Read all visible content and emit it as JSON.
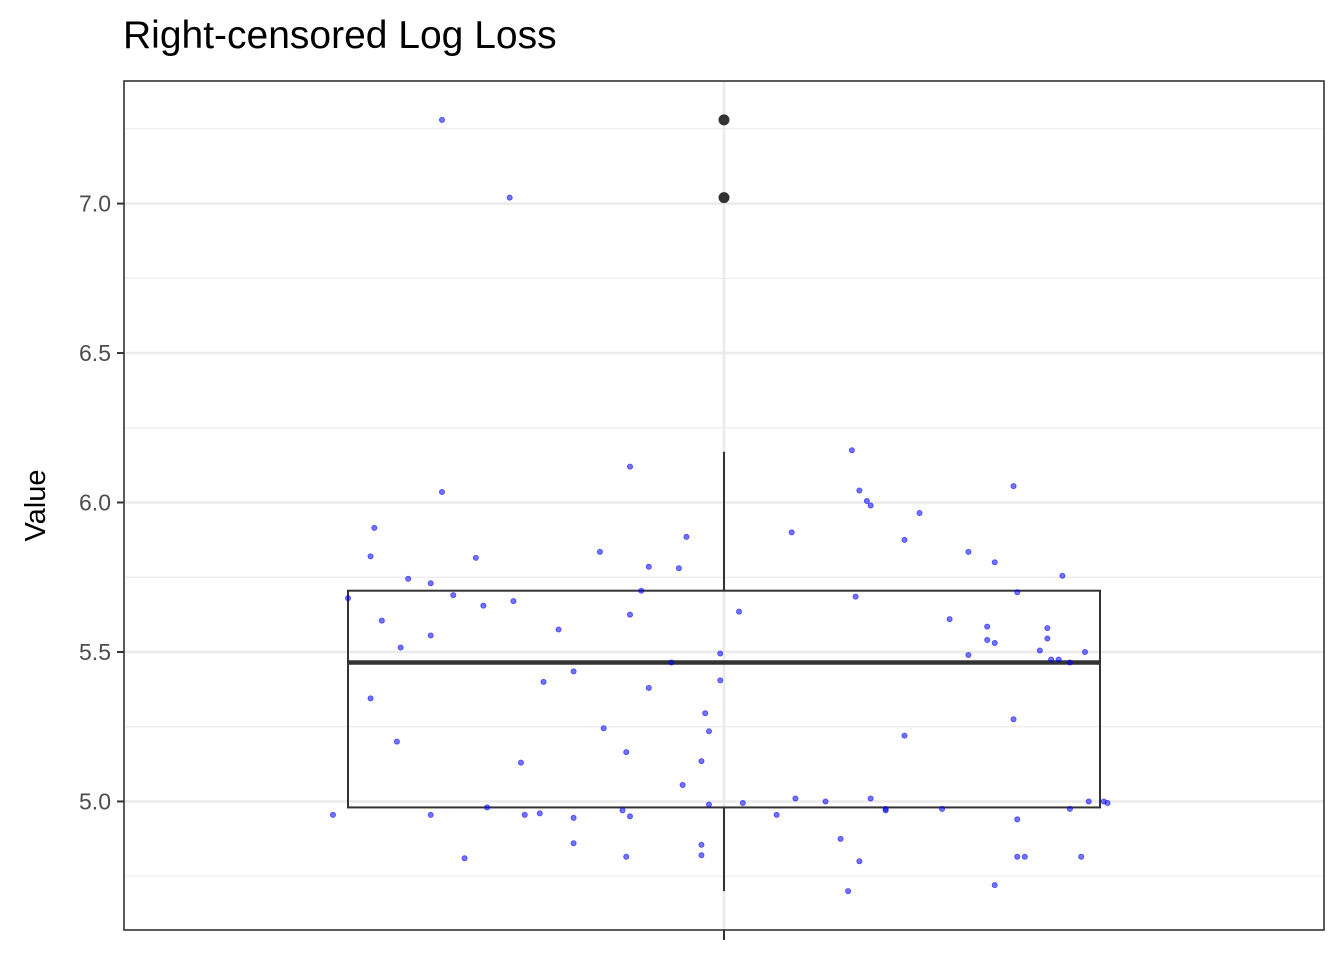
{
  "chart_data": {
    "type": "boxplot",
    "title": "Right-censored Log Loss",
    "xlabel": "",
    "ylabel": "Value",
    "ylim": [
      4.57,
      7.41
    ],
    "y_ticks": [
      "5.0",
      "5.5",
      "6.0",
      "6.5",
      "7.0"
    ],
    "y_tick_values": [
      5.0,
      5.5,
      6.0,
      6.5,
      7.0
    ],
    "grid": true,
    "colors": {
      "points": "#0000ff",
      "box": "#333333",
      "grid": "#ebebeb",
      "panel_border": "#333333"
    },
    "box": {
      "whisker_low": 4.7,
      "q1": 4.98,
      "median": 5.465,
      "q3": 5.705,
      "whisker_high": 6.17,
      "outliers": [
        7.02,
        7.28
      ]
    },
    "points": [
      {
        "x": -0.52,
        "y": 4.955
      },
      {
        "x": -0.5,
        "y": 5.68
      },
      {
        "x": -0.47,
        "y": 5.82
      },
      {
        "x": -0.47,
        "y": 5.345
      },
      {
        "x": -0.465,
        "y": 5.915
      },
      {
        "x": -0.455,
        "y": 5.605
      },
      {
        "x": -0.435,
        "y": 5.2
      },
      {
        "x": -0.43,
        "y": 5.515
      },
      {
        "x": -0.42,
        "y": 5.745
      },
      {
        "x": -0.39,
        "y": 5.555
      },
      {
        "x": -0.39,
        "y": 5.73
      },
      {
        "x": -0.39,
        "y": 4.955
      },
      {
        "x": -0.375,
        "y": 6.035
      },
      {
        "x": -0.375,
        "y": 7.28
      },
      {
        "x": -0.36,
        "y": 5.69
      },
      {
        "x": -0.345,
        "y": 4.81
      },
      {
        "x": -0.33,
        "y": 5.815
      },
      {
        "x": -0.32,
        "y": 5.655
      },
      {
        "x": -0.315,
        "y": 4.98
      },
      {
        "x": -0.285,
        "y": 7.02
      },
      {
        "x": -0.28,
        "y": 5.67
      },
      {
        "x": -0.27,
        "y": 5.13
      },
      {
        "x": -0.265,
        "y": 4.955
      },
      {
        "x": -0.245,
        "y": 4.96
      },
      {
        "x": -0.24,
        "y": 5.4
      },
      {
        "x": -0.22,
        "y": 5.575
      },
      {
        "x": -0.2,
        "y": 5.435
      },
      {
        "x": -0.2,
        "y": 4.945
      },
      {
        "x": -0.2,
        "y": 4.86
      },
      {
        "x": -0.165,
        "y": 5.835
      },
      {
        "x": -0.16,
        "y": 5.245
      },
      {
        "x": -0.135,
        "y": 4.97
      },
      {
        "x": -0.13,
        "y": 5.165
      },
      {
        "x": -0.13,
        "y": 4.815
      },
      {
        "x": -0.125,
        "y": 5.625
      },
      {
        "x": -0.125,
        "y": 6.12
      },
      {
        "x": -0.125,
        "y": 4.95
      },
      {
        "x": -0.11,
        "y": 5.705
      },
      {
        "x": -0.1,
        "y": 5.785
      },
      {
        "x": -0.1,
        "y": 5.38
      },
      {
        "x": -0.07,
        "y": 5.465
      },
      {
        "x": -0.06,
        "y": 5.78
      },
      {
        "x": -0.055,
        "y": 5.055
      },
      {
        "x": -0.05,
        "y": 5.885
      },
      {
        "x": -0.03,
        "y": 5.135
      },
      {
        "x": -0.03,
        "y": 4.855
      },
      {
        "x": -0.03,
        "y": 4.82
      },
      {
        "x": -0.025,
        "y": 5.295
      },
      {
        "x": -0.02,
        "y": 5.235
      },
      {
        "x": -0.02,
        "y": 4.99
      },
      {
        "x": -0.005,
        "y": 5.405
      },
      {
        "x": -0.005,
        "y": 5.495
      },
      {
        "x": 0.02,
        "y": 5.635
      },
      {
        "x": 0.025,
        "y": 4.995
      },
      {
        "x": 0.07,
        "y": 4.955
      },
      {
        "x": 0.09,
        "y": 5.9
      },
      {
        "x": 0.095,
        "y": 5.01
      },
      {
        "x": 0.135,
        "y": 5.0
      },
      {
        "x": 0.155,
        "y": 4.875
      },
      {
        "x": 0.165,
        "y": 4.7
      },
      {
        "x": 0.17,
        "y": 6.175
      },
      {
        "x": 0.175,
        "y": 5.685
      },
      {
        "x": 0.18,
        "y": 6.04
      },
      {
        "x": 0.18,
        "y": 4.8
      },
      {
        "x": 0.19,
        "y": 6.005
      },
      {
        "x": 0.195,
        "y": 5.99
      },
      {
        "x": 0.195,
        "y": 5.01
      },
      {
        "x": 0.215,
        "y": 4.975
      },
      {
        "x": 0.215,
        "y": 4.97
      },
      {
        "x": 0.24,
        "y": 5.22
      },
      {
        "x": 0.24,
        "y": 5.875
      },
      {
        "x": 0.26,
        "y": 5.965
      },
      {
        "x": 0.29,
        "y": 4.975
      },
      {
        "x": 0.3,
        "y": 5.61
      },
      {
        "x": 0.325,
        "y": 5.49
      },
      {
        "x": 0.325,
        "y": 5.835
      },
      {
        "x": 0.35,
        "y": 5.585
      },
      {
        "x": 0.35,
        "y": 5.54
      },
      {
        "x": 0.36,
        "y": 5.53
      },
      {
        "x": 0.36,
        "y": 5.8
      },
      {
        "x": 0.36,
        "y": 4.72
      },
      {
        "x": 0.385,
        "y": 5.275
      },
      {
        "x": 0.385,
        "y": 6.055
      },
      {
        "x": 0.39,
        "y": 4.94
      },
      {
        "x": 0.39,
        "y": 5.7
      },
      {
        "x": 0.39,
        "y": 4.815
      },
      {
        "x": 0.4,
        "y": 4.815
      },
      {
        "x": 0.42,
        "y": 5.505
      },
      {
        "x": 0.43,
        "y": 5.58
      },
      {
        "x": 0.43,
        "y": 5.545
      },
      {
        "x": 0.435,
        "y": 5.475
      },
      {
        "x": 0.445,
        "y": 5.475
      },
      {
        "x": 0.45,
        "y": 5.755
      },
      {
        "x": 0.46,
        "y": 5.465
      },
      {
        "x": 0.46,
        "y": 4.975
      },
      {
        "x": 0.475,
        "y": 4.815
      },
      {
        "x": 0.48,
        "y": 5.5
      },
      {
        "x": 0.485,
        "y": 5.0
      },
      {
        "x": 0.505,
        "y": 5.0
      },
      {
        "x": 0.51,
        "y": 4.995
      }
    ]
  }
}
